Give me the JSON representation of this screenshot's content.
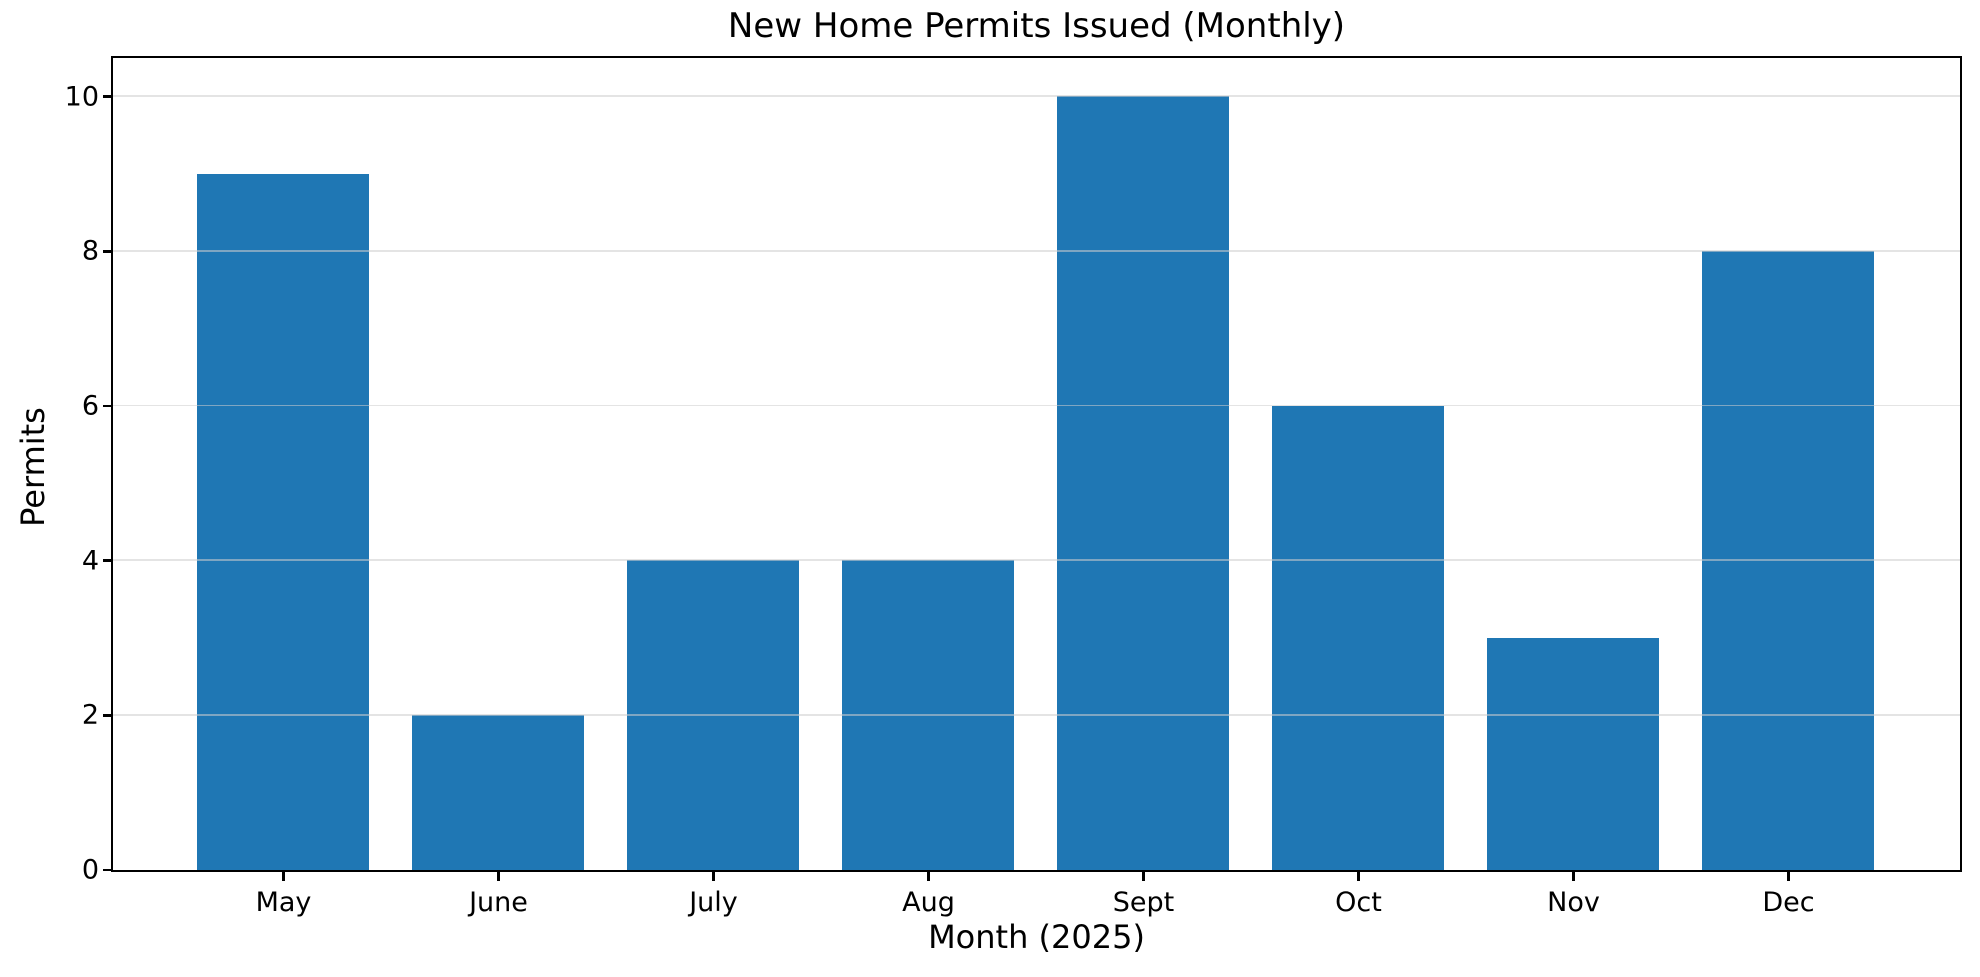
{
  "figure": {
    "background": "#ffffff",
    "text_color": "#000000",
    "spine_color": "#000000",
    "gridline_color": "#d5d5d5"
  },
  "chart_data": {
    "type": "bar",
    "title": "New Home Permits Issued (Monthly)",
    "xlabel": "Month (2025)",
    "ylabel": "Permits",
    "categories": [
      "May",
      "June",
      "July",
      "Aug",
      "Sept",
      "Oct",
      "Nov",
      "Dec"
    ],
    "values": [
      9,
      2,
      4,
      4,
      10,
      6,
      3,
      8
    ],
    "yticks": [
      0,
      2,
      4,
      6,
      8,
      10
    ],
    "ylim": [
      0,
      10.5
    ],
    "bar_color": "#1f77b4",
    "grid": "horizontal",
    "legend": "none"
  }
}
